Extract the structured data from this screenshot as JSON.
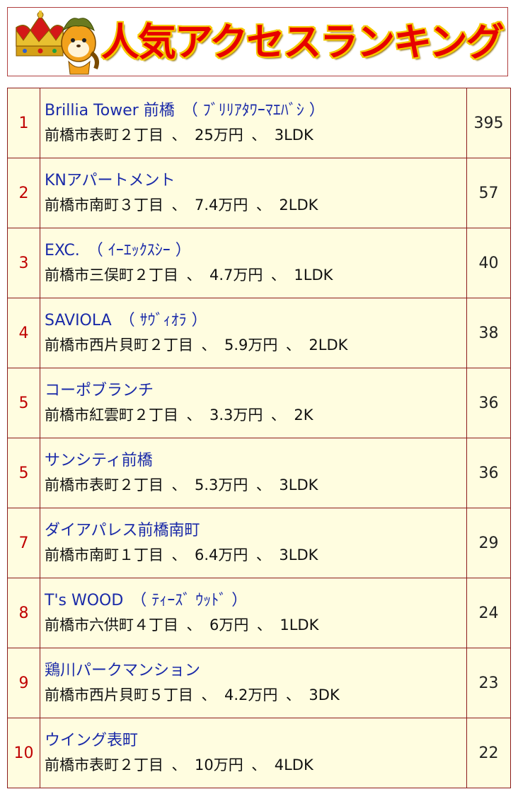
{
  "banner": {
    "title": "人気アクセスランキング",
    "mascot_icon": "mascot-crown-icon",
    "colors": {
      "title": "#e60000",
      "outline": "#f5c800",
      "crown": "#d4a017"
    }
  },
  "table": {
    "colors": {
      "border": "#8b1a1a",
      "background": "#fffde0",
      "rank": "#c00000",
      "link": "#1a2aa8"
    },
    "rows": [
      {
        "rank": "1",
        "name": "Brillia Tower 前橋　（ ﾌﾞﾘﾘｱﾀﾜｰﾏｴﾊﾞｼ ）",
        "address": "前橋市表町２丁目",
        "rent": "25万円",
        "layout": "3LDK",
        "count": "395"
      },
      {
        "rank": "2",
        "name": "KNアパートメント",
        "address": "前橋市南町３丁目",
        "rent": "7.4万円",
        "layout": "2LDK",
        "count": "57"
      },
      {
        "rank": "3",
        "name": "EXC.　（ ｲｰｴｯｸｽｼｰ ）",
        "address": "前橋市三俣町２丁目",
        "rent": "4.7万円",
        "layout": "1LDK",
        "count": "40"
      },
      {
        "rank": "4",
        "name": "SAVIOLA　（ ｻｳﾞｨｵﾗ ）",
        "address": "前橋市西片貝町２丁目",
        "rent": "5.9万円",
        "layout": "2LDK",
        "count": "38"
      },
      {
        "rank": "5",
        "name": "コーポブランチ",
        "address": "前橋市紅雲町２丁目",
        "rent": "3.3万円",
        "layout": "2K",
        "count": "36"
      },
      {
        "rank": "5",
        "name": "サンシティ前橋",
        "address": "前橋市表町２丁目",
        "rent": "5.3万円",
        "layout": "3LDK",
        "count": "36"
      },
      {
        "rank": "7",
        "name": "ダイアパレス前橋南町",
        "address": "前橋市南町１丁目",
        "rent": "6.4万円",
        "layout": "3LDK",
        "count": "29"
      },
      {
        "rank": "8",
        "name": "T's WOOD　（ ﾃｨｰｽﾞ ｳｯﾄﾞ ）",
        "address": "前橋市六供町４丁目",
        "rent": "6万円",
        "layout": "1LDK",
        "count": "24"
      },
      {
        "rank": "9",
        "name": "鶏川パークマンション",
        "address": "前橋市西片貝町５丁目",
        "rent": "4.2万円",
        "layout": "3DK",
        "count": "23"
      },
      {
        "rank": "10",
        "name": "ウイング表町",
        "address": "前橋市表町２丁目",
        "rent": "10万円",
        "layout": "4LDK",
        "count": "22"
      }
    ],
    "separator": "、"
  }
}
